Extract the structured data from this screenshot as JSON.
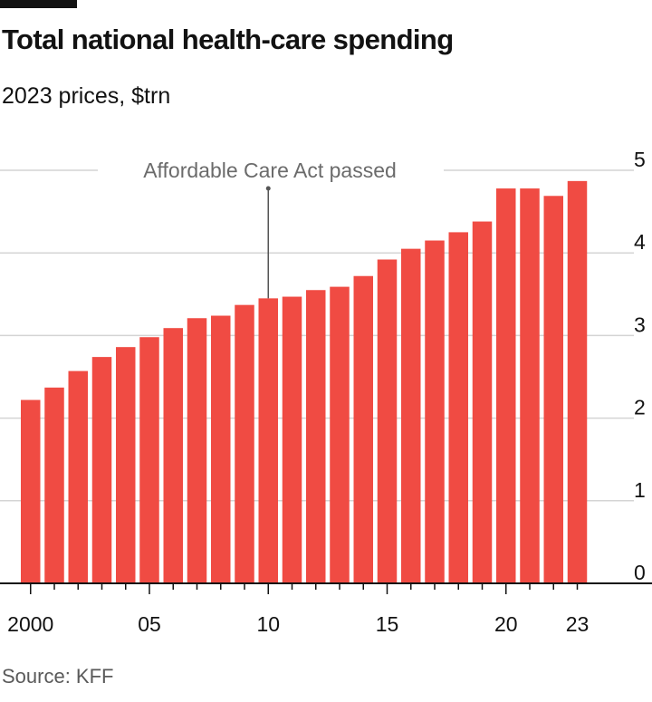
{
  "header": {
    "title": "Total national health-care spending",
    "subtitle": "2023 prices, $trn"
  },
  "source": "Source: KFF",
  "chart_data": {
    "type": "bar",
    "title": "Total national health-care spending",
    "subtitle": "2023 prices, $trn",
    "xlabel": "",
    "ylabel": "",
    "categories": [
      2000,
      2001,
      2002,
      2003,
      2004,
      2005,
      2006,
      2007,
      2008,
      2009,
      2010,
      2011,
      2012,
      2013,
      2014,
      2015,
      2016,
      2017,
      2018,
      2019,
      2020,
      2021,
      2022,
      2023
    ],
    "values": [
      2.22,
      2.37,
      2.57,
      2.74,
      2.86,
      2.98,
      3.09,
      3.21,
      3.24,
      3.37,
      3.45,
      3.47,
      3.55,
      3.59,
      3.72,
      3.92,
      4.05,
      4.15,
      4.25,
      4.38,
      4.78,
      4.78,
      4.69,
      4.87
    ],
    "ylim": [
      0,
      5
    ],
    "y_ticks": [
      "0",
      "1",
      "2",
      "3",
      "4",
      "5"
    ],
    "x_tick_labels": [
      {
        "year": 2000,
        "label": "2000"
      },
      {
        "year": 2005,
        "label": "05"
      },
      {
        "year": 2010,
        "label": "10"
      },
      {
        "year": 2015,
        "label": "15"
      },
      {
        "year": 2020,
        "label": "20"
      },
      {
        "year": 2023,
        "label": "23"
      }
    ],
    "y_axis_side": "right",
    "grid": true,
    "annotation": {
      "year": 2010,
      "text": "Affordable Care Act passed"
    },
    "colors": {
      "bar": "#f04b43",
      "grid": "#d4d4d4",
      "axis": "#121212",
      "annotation": "#6b6b6b"
    }
  }
}
